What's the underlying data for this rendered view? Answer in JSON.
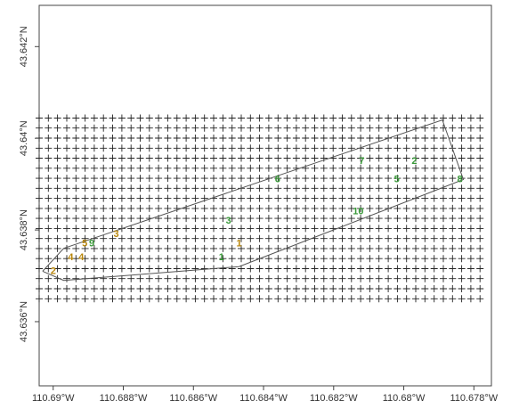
{
  "chart_data": {
    "type": "scatter",
    "title": "",
    "xlabel": "",
    "ylabel": "",
    "x_axis": {
      "range": [
        -110.6904,
        -110.6775
      ],
      "ticks": [
        {
          "value": -110.69,
          "label": "110.69°W"
        },
        {
          "value": -110.688,
          "label": "110.688°W"
        },
        {
          "value": -110.686,
          "label": "110.686°W"
        },
        {
          "value": -110.684,
          "label": "110.684°W"
        },
        {
          "value": -110.682,
          "label": "110.682°W"
        },
        {
          "value": -110.68,
          "label": "110.68°W"
        },
        {
          "value": -110.678,
          "label": "110.678°W"
        }
      ]
    },
    "y_axis": {
      "range": [
        43.6346,
        43.6429
      ],
      "ticks": [
        {
          "value": 43.642,
          "label": "43.642°N"
        },
        {
          "value": 43.64,
          "label": "43.64°N"
        },
        {
          "value": 43.638,
          "label": "43.638°N"
        },
        {
          "value": 43.636,
          "label": "43.636°N"
        }
      ]
    },
    "grid_markers": {
      "symbol": "+",
      "x_start": -110.6904,
      "x_step": 0.000262,
      "x_count": 49,
      "y_start": 43.6365,
      "y_step": 0.000219,
      "y_count": 19
    },
    "polygon": [
      [
        -110.6903,
        43.6371
      ],
      [
        -110.6897,
        43.6369
      ],
      [
        -110.6847,
        43.6372
      ],
      [
        -110.6783,
        43.6391
      ],
      [
        -110.6789,
        43.6404
      ],
      [
        -110.6897,
        43.6376
      ],
      [
        -110.6903,
        43.6371
      ]
    ],
    "labeled_points": [
      {
        "label": "2",
        "x": -110.69,
        "y": 43.6371,
        "color": "#b8860b"
      },
      {
        "label": "4",
        "x": -110.6895,
        "y": 43.6374,
        "color": "#b8860b"
      },
      {
        "label": "4",
        "x": -110.6892,
        "y": 43.6374,
        "color": "#b8860b"
      },
      {
        "label": "5",
        "x": -110.6891,
        "y": 43.6377,
        "color": "#b8860b"
      },
      {
        "label": "9",
        "x": -110.6889,
        "y": 43.6377,
        "color": "#3a9a3a"
      },
      {
        "label": "3",
        "x": -110.6882,
        "y": 43.6379,
        "color": "#b8860b"
      },
      {
        "label": "1",
        "x": -110.6852,
        "y": 43.6374,
        "color": "#3a9a3a"
      },
      {
        "label": "3",
        "x": -110.685,
        "y": 43.6382,
        "color": "#3a9a3a"
      },
      {
        "label": "1",
        "x": -110.6847,
        "y": 43.6377,
        "color": "#b8860b"
      },
      {
        "label": "6",
        "x": -110.6836,
        "y": 43.6391,
        "color": "#3a9a3a"
      },
      {
        "label": "10",
        "x": -110.6813,
        "y": 43.6384,
        "color": "#3a9a3a"
      },
      {
        "label": "7",
        "x": -110.6812,
        "y": 43.6395,
        "color": "#3a9a3a"
      },
      {
        "label": "2",
        "x": -110.6797,
        "y": 43.6395,
        "color": "#3a9a3a"
      },
      {
        "label": "5",
        "x": -110.6802,
        "y": 43.6391,
        "color": "#3a9a3a"
      },
      {
        "label": "8",
        "x": -110.6784,
        "y": 43.6391,
        "color": "#3a9a3a"
      }
    ],
    "grid": false,
    "legend": "none"
  },
  "colors": {
    "axis": "#444444",
    "marker": "#222222",
    "polygon": "#555555"
  }
}
